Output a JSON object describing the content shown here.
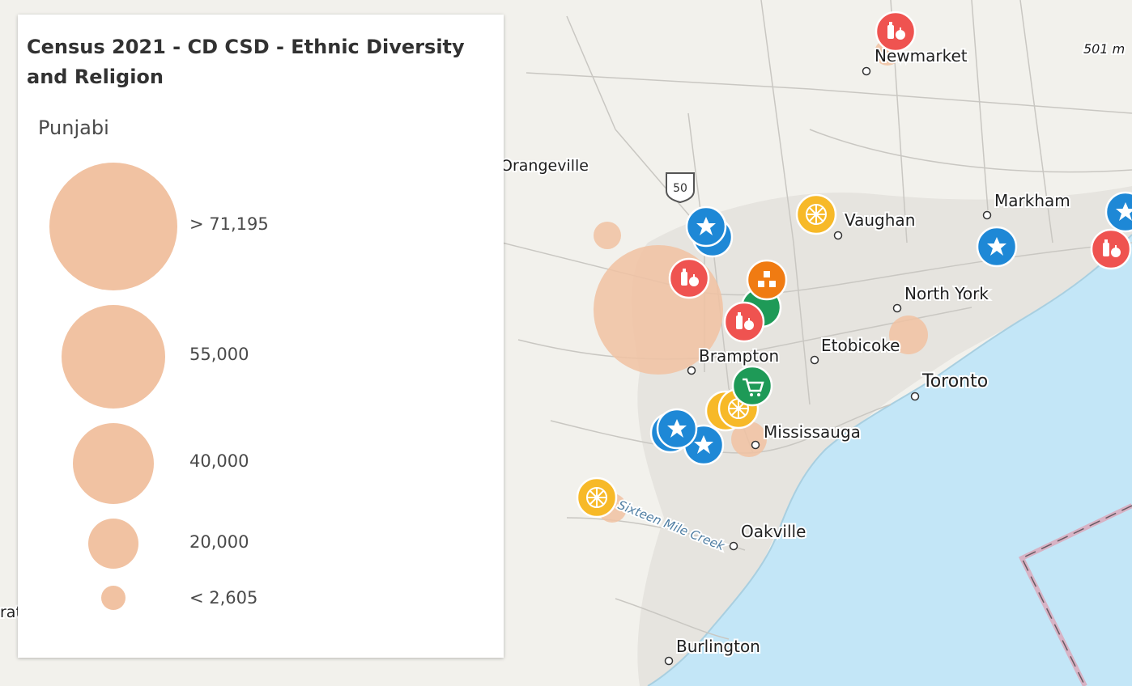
{
  "legend": {
    "title": "Census 2021 - CD CSD - Ethnic Diversity and Religion",
    "field": "Punjabi",
    "symbol_color": "#f1c2a2",
    "classes": [
      {
        "label": "> 71,195"
      },
      {
        "label": "55,000"
      },
      {
        "label": "40,000"
      },
      {
        "label": "20,000"
      },
      {
        "label": "< 2,605"
      }
    ]
  },
  "map": {
    "water_color": "#c3e6f7",
    "urban_color": "#e6e4df",
    "land_color": "#f2f1ec",
    "places": {
      "newmarket": "Newmarket",
      "orangeville": "Orangeville",
      "vaughan": "Vaughan",
      "markham": "Markham",
      "north_york": "North York",
      "brampton": "Brampton",
      "etobicoke": "Etobicoke",
      "toronto": "Toronto",
      "mississauga": "Mississauga",
      "oakville": "Oakville",
      "burlington": "Burlington",
      "creek": "Sixteen Mile Creek",
      "edge_label": "rat",
      "elevation": "501 m",
      "highway": "50"
    },
    "poi_colors": {
      "grocery": "#ef5350",
      "star": "#1e88d6",
      "citrus": "#f7b928",
      "cart": "#1e9a57",
      "boxes": "#f07b12"
    }
  }
}
